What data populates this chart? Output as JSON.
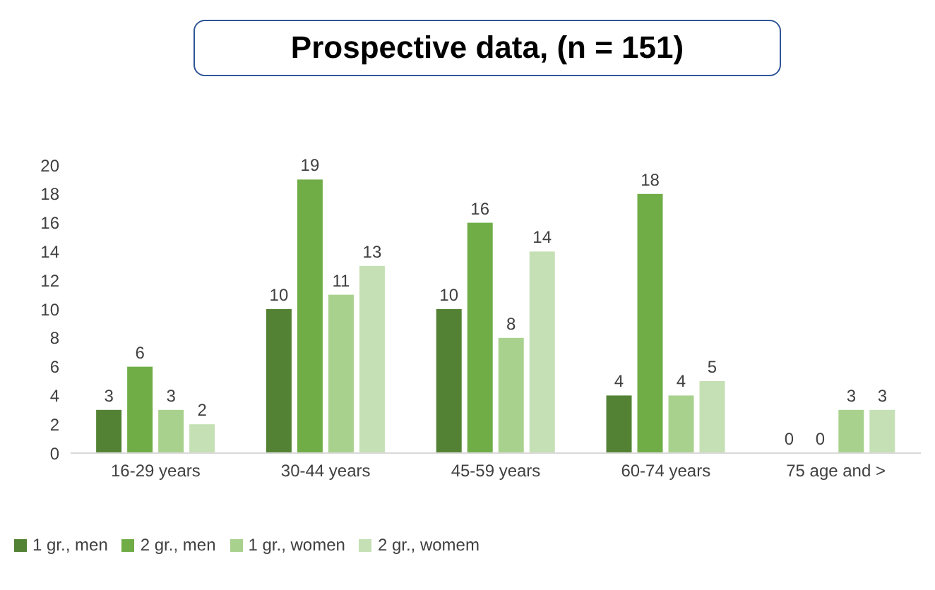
{
  "chart_data": {
    "type": "bar",
    "title": "Prospective data, (n = 151)",
    "categories": [
      "16-29 years",
      "30-44 years",
      "45-59 years",
      "60-74 years",
      "75 age and >"
    ],
    "series": [
      {
        "name": "1 gr., men",
        "color": "#548235",
        "values": [
          3,
          10,
          10,
          4,
          0
        ]
      },
      {
        "name": "2 gr., men",
        "color": "#70ad47",
        "values": [
          6,
          19,
          16,
          18,
          0
        ]
      },
      {
        "name": "1 gr., women",
        "color": "#a9d18e",
        "values": [
          3,
          11,
          8,
          4,
          3
        ]
      },
      {
        "name": "2 gr., womem",
        "color": "#c5e0b4",
        "values": [
          2,
          13,
          14,
          5,
          3
        ]
      }
    ],
    "ylim": [
      0,
      20
    ],
    "yticks": [
      0,
      2,
      4,
      6,
      8,
      10,
      12,
      14,
      16,
      18,
      20
    ],
    "data_labels": true,
    "grid": false,
    "legend": "bottom left"
  }
}
